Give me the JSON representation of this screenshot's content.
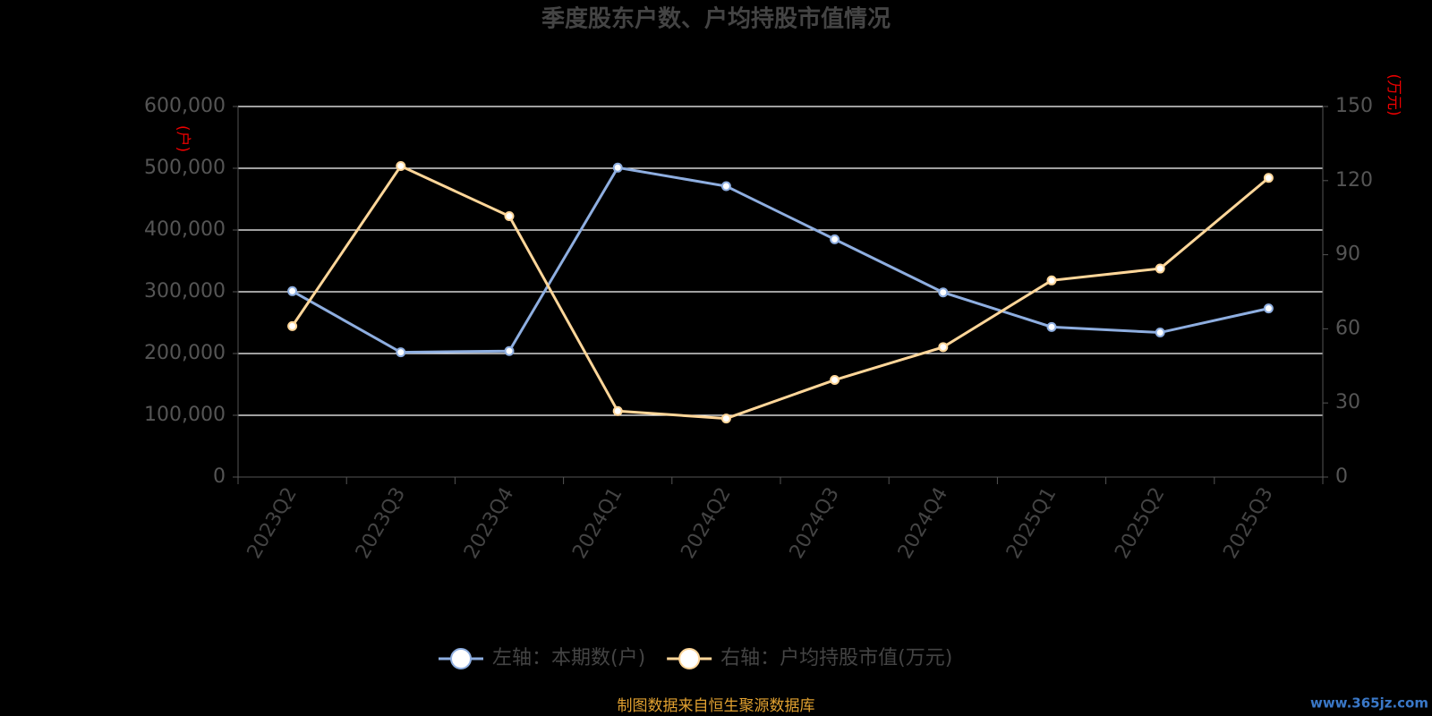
{
  "chart_data": {
    "type": "line",
    "title": "季度股东户数、户均持股市值情况",
    "categories": [
      "2023Q2",
      "2023Q3",
      "2023Q4",
      "2024Q1",
      "2024Q2",
      "2024Q3",
      "2024Q4",
      "2025Q1",
      "2025Q2",
      "2025Q3"
    ],
    "series": [
      {
        "name": "左轴：本期数(户)",
        "color": "#8eaee0",
        "axis": "y",
        "values": [
          301000,
          202000,
          204000,
          501000,
          471000,
          385000,
          299000,
          243000,
          234000,
          273000
        ]
      },
      {
        "name": "右轴：户均持股市值(万元)",
        "color": "#ffd699",
        "axis": "y2",
        "values": [
          61.1,
          125.9,
          105.6,
          26.7,
          23.7,
          39.3,
          52.6,
          79.6,
          84.4,
          121.1
        ]
      }
    ],
    "ylim": [
      0,
      600000
    ],
    "yticks": [
      0,
      {
        "value": 100000,
        "label": "100,000"
      },
      {
        "value": 200000,
        "label": "200,000"
      },
      {
        "value": 300000,
        "label": "300,000"
      },
      {
        "value": 400000,
        "label": "400,000"
      },
      {
        "value": 500000,
        "label": "500,000"
      },
      {
        "value": 600000,
        "label": "600,000"
      }
    ],
    "y2lim": [
      0,
      150
    ],
    "y2ticks": [
      0,
      30,
      60,
      90,
      120,
      150
    ],
    "y_unit": "(户)",
    "y2_unit": "(万元)",
    "grid": true,
    "source": "制图数据来自恒生聚源数据库",
    "watermark": "www.365jz.com"
  }
}
